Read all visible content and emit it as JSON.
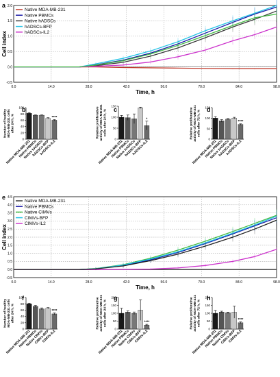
{
  "chart_data": [
    {
      "panel": "a",
      "type": "line",
      "xlabel": "Time, h",
      "ylabel": "Cell index",
      "xlim": [
        0,
        96
      ],
      "ylim": [
        -0.5,
        2.0
      ],
      "xticks": [
        "0.0",
        "14.0",
        "28.0",
        "42.0",
        "56.0",
        "70.0",
        "84.0",
        "98.0"
      ],
      "yticks": [
        "-0.5",
        "0.0",
        "0.5",
        "1.0",
        "1.5",
        "2.0"
      ],
      "grid": true,
      "legend_position": "top-left",
      "x": [
        0,
        24,
        30,
        40,
        50,
        60,
        70,
        80,
        88,
        96
      ],
      "series": [
        {
          "name": "Native MDA-MB-231",
          "color": "#c0392b",
          "values": [
            0.0,
            0.0,
            0.0,
            -0.02,
            -0.03,
            -0.04,
            -0.05,
            -0.06,
            -0.06,
            -0.06
          ]
        },
        {
          "name": "Native PBMCs",
          "color": "#1a1aa8",
          "values": [
            0.0,
            0.0,
            0.07,
            0.22,
            0.45,
            0.75,
            1.1,
            1.45,
            1.72,
            1.95
          ]
        },
        {
          "name": "Native hADSCs",
          "color": "#3a3a3a",
          "values": [
            0.0,
            0.0,
            0.04,
            0.15,
            0.35,
            0.62,
            0.95,
            1.3,
            1.55,
            1.82
          ]
        },
        {
          "name": "hADSCs-BFP",
          "color": "#22c3e6",
          "values": [
            0.0,
            0.0,
            0.1,
            0.28,
            0.52,
            0.82,
            1.18,
            1.5,
            1.75,
            2.0
          ]
        },
        {
          "name": "hADSCs-IL2",
          "color": "#cc33cc",
          "values": [
            0.0,
            0.0,
            0.02,
            0.06,
            0.16,
            0.33,
            0.55,
            0.85,
            1.05,
            1.3
          ]
        },
        {
          "name": "",
          "color": "#44bb44",
          "values": [
            0.0,
            0.0,
            0.06,
            0.2,
            0.42,
            0.7,
            1.02,
            1.35,
            1.6,
            1.72
          ]
        }
      ]
    },
    {
      "panel": "b",
      "type": "bar",
      "ylabel": "Number of healthy MDA-MB-231 cells after 24 h, %",
      "ylim": [
        0,
        100
      ],
      "yticks": [
        "0",
        "20",
        "40",
        "60",
        "80",
        "100"
      ],
      "categories": [
        "Native MDA-MB-231",
        "Native PBMCs",
        "Native hADSCs",
        "hADSCs-BFP",
        "hADSCs-IL2"
      ],
      "values": [
        82,
        76,
        76,
        66,
        60
      ],
      "errors": [
        2,
        1,
        1,
        2,
        2
      ],
      "colors": [
        "#1a1a1a",
        "#555555",
        "#777777",
        "#c8c8c8",
        "#6a6a6a"
      ],
      "annotations": [
        "",
        "",
        "",
        "",
        "****"
      ]
    },
    {
      "panel": "c",
      "type": "bar",
      "ylabel": "Relative proliferative activity of MDA-MB-231 cells after 24 h, %",
      "ylim": [
        0,
        150
      ],
      "yticks": [
        "0",
        "50",
        "100",
        "150"
      ],
      "categories": [
        "Native MDA-MB-231",
        "Native PBMCs",
        "Native hADSCs",
        "hADSCs-BFP",
        "hADSCs-IL2"
      ],
      "values": [
        100,
        98,
        93,
        143,
        62
      ],
      "errors": [
        8,
        12,
        22,
        3,
        20
      ],
      "colors": [
        "#1a1a1a",
        "#555555",
        "#777777",
        "#c8c8c8",
        "#6a6a6a"
      ],
      "annotations": [
        "",
        "",
        "",
        "",
        "*"
      ]
    },
    {
      "panel": "d",
      "type": "bar",
      "ylabel": "Relative proliferative activity of MDA-MB-231 cells after 72 h, %",
      "ylim": [
        0,
        150
      ],
      "yticks": [
        "0",
        "50",
        "100",
        "150"
      ],
      "categories": [
        "Native MDA-MB-231",
        "Native PBMCs",
        "Native hADSCs",
        "hADSCs-BFP",
        "hADSCs-IL2"
      ],
      "values": [
        100,
        87,
        95,
        100,
        70
      ],
      "errors": [
        7,
        6,
        3,
        4,
        3
      ],
      "colors": [
        "#1a1a1a",
        "#555555",
        "#777777",
        "#c8c8c8",
        "#6a6a6a"
      ],
      "annotations": [
        "",
        "",
        "",
        "",
        "****"
      ]
    },
    {
      "panel": "e",
      "type": "line",
      "xlabel": "Time, h",
      "ylabel": "Cell index",
      "xlim": [
        0,
        96
      ],
      "ylim": [
        -0.5,
        4.5
      ],
      "xticks": [
        "0.0",
        "14.0",
        "28.0",
        "42.0",
        "56.0",
        "70.0",
        "84.0",
        "98.0"
      ],
      "yticks": [
        "-0.5",
        "0.0",
        "0.5",
        "1.0",
        "1.5",
        "2.0",
        "2.5",
        "3.0",
        "3.5",
        "4.0",
        "4.5"
      ],
      "grid": true,
      "legend_position": "top-left",
      "x": [
        0,
        24,
        30,
        40,
        50,
        60,
        70,
        80,
        88,
        96
      ],
      "series": [
        {
          "name": "Native MDA-MB-231",
          "color": "#3a3a3a",
          "values": [
            0.0,
            0.0,
            0.0,
            0.0,
            0.0,
            0.0,
            0.0,
            0.0,
            0.0,
            0.0
          ]
        },
        {
          "name": "Native PBMCs",
          "color": "#1a1aa8",
          "values": [
            0.0,
            0.0,
            0.05,
            0.25,
            0.6,
            1.05,
            1.6,
            2.2,
            2.7,
            3.2
          ]
        },
        {
          "name": "Native CIMVs",
          "color": "#44bb44",
          "values": [
            0.0,
            0.0,
            0.06,
            0.3,
            0.7,
            1.2,
            1.75,
            2.35,
            2.85,
            3.35
          ]
        },
        {
          "name": "CIMVs-BFP",
          "color": "#22c3e6",
          "values": [
            0.0,
            0.0,
            0.05,
            0.28,
            0.65,
            1.1,
            1.65,
            2.25,
            2.75,
            3.3
          ]
        },
        {
          "name": "CIMVs-IL2",
          "color": "#cc33cc",
          "values": [
            0.0,
            0.0,
            0.0,
            0.01,
            0.03,
            0.1,
            0.25,
            0.5,
            0.8,
            1.25
          ]
        },
        {
          "name": "",
          "color": "#222222",
          "values": [
            0.0,
            0.0,
            0.04,
            0.22,
            0.55,
            0.95,
            1.45,
            2.0,
            2.5,
            3.05
          ]
        }
      ]
    },
    {
      "panel": "f",
      "type": "bar",
      "ylabel": "Number of healthy MDA-MB-231 cells after 24 h, %",
      "ylim": [
        0,
        100
      ],
      "yticks": [
        "0",
        "20",
        "40",
        "60",
        "80",
        "100"
      ],
      "categories": [
        "Native MDA-MB-231",
        "Native PBMCs",
        "Native CIMVs",
        "CIMVs-BFP",
        "CIMVs-IL2"
      ],
      "values": [
        80,
        72,
        64,
        66,
        48
      ],
      "errors": [
        2,
        3,
        3,
        2,
        3
      ],
      "colors": [
        "#1a1a1a",
        "#555555",
        "#777777",
        "#c8c8c8",
        "#6a6a6a"
      ],
      "annotations": [
        "",
        "",
        "",
        "",
        "****"
      ]
    },
    {
      "panel": "g",
      "type": "bar",
      "ylabel": "Relative proliferative activity of MDA-MB-231 cells after 24 h, %",
      "ylim": [
        0,
        200
      ],
      "yticks": [
        "0",
        "50",
        "100",
        "150",
        "200"
      ],
      "categories": [
        "Native MDA-MB-231",
        "Native PBMCs",
        "Native CIMVs",
        "CIMVs-BFP",
        "CIMVs-IL2"
      ],
      "values": [
        100,
        107,
        100,
        120,
        25
      ],
      "errors": [
        32,
        8,
        8,
        65,
        5
      ],
      "colors": [
        "#1a1a1a",
        "#555555",
        "#777777",
        "#c8c8c8",
        "#6a6a6a"
      ],
      "annotations": [
        "",
        "",
        "",
        "",
        "****"
      ]
    },
    {
      "panel": "h",
      "type": "bar",
      "ylabel": "Relative proliferative activity of MDA-MB-231 cells after 72 h, %",
      "ylim": [
        0,
        200
      ],
      "yticks": [
        "0",
        "50",
        "100",
        "150",
        "200"
      ],
      "categories": [
        "Native MDA-MB-231",
        "Native PBMCs",
        "Native CIMVs",
        "CIMVs-BFP",
        "CIMVs-IL2"
      ],
      "values": [
        100,
        108,
        103,
        107,
        40
      ],
      "errors": [
        18,
        5,
        4,
        38,
        5
      ],
      "colors": [
        "#1a1a1a",
        "#555555",
        "#777777",
        "#c8c8c8",
        "#6a6a6a"
      ],
      "annotations": [
        "",
        "",
        "",
        "",
        "****"
      ]
    }
  ]
}
